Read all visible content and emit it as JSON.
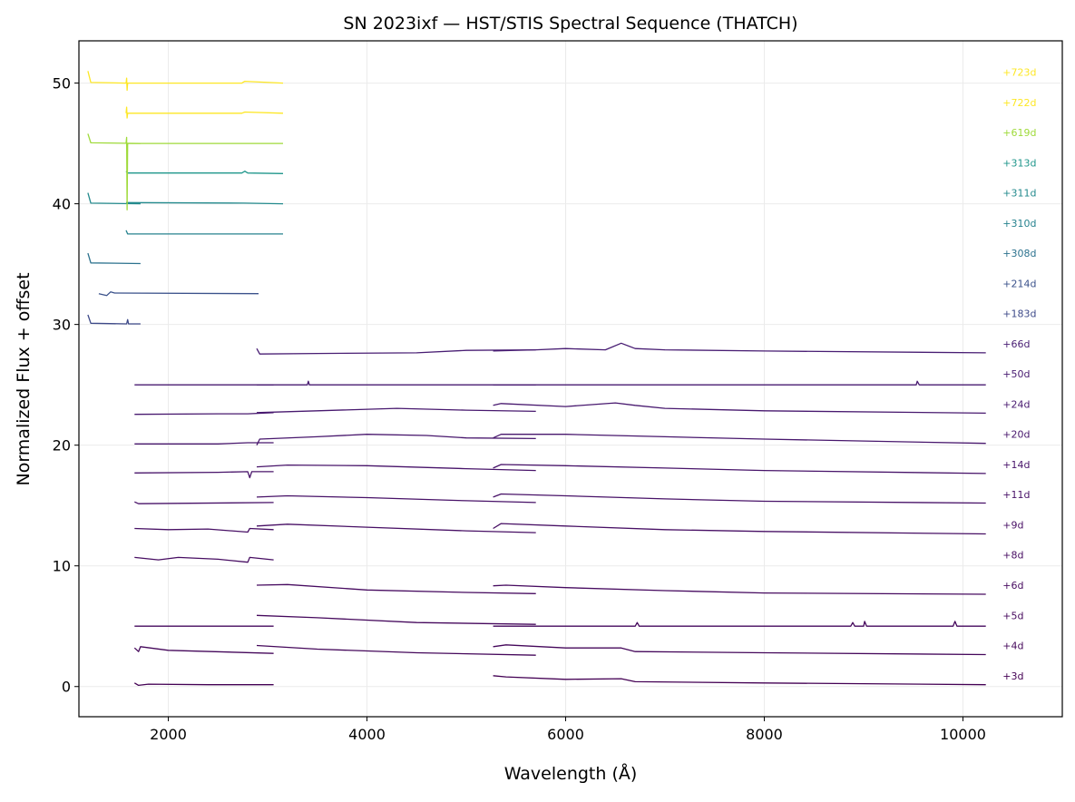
{
  "chart_data": {
    "type": "line",
    "title": "SN 2023ixf — HST/STIS Spectral Sequence (THATCH)",
    "xlabel": "Wavelength (Å)",
    "ylabel": "Normalized Flux + offset",
    "xlim": [
      1100,
      11000
    ],
    "ylim": [
      -2.5,
      53.5
    ],
    "xticks": [
      2000,
      4000,
      6000,
      8000,
      10000
    ],
    "yticks": [
      0,
      10,
      20,
      30,
      40,
      50
    ],
    "grid": true,
    "label_wavelength": 10400,
    "series": [
      {
        "name": "+3d",
        "offset": 0,
        "color": "#440154",
        "segments": [
          [
            [
              1660,
              0.3
            ],
            [
              1700,
              0.1
            ],
            [
              1800,
              0.2
            ],
            [
              2400,
              0.15
            ],
            [
              3060,
              0.15
            ]
          ],
          [
            [
              5270,
              0.9
            ],
            [
              5400,
              0.8
            ],
            [
              6000,
              0.6
            ],
            [
              6560,
              0.65
            ],
            [
              6700,
              0.4
            ],
            [
              8000,
              0.3
            ],
            [
              10230,
              0.15
            ]
          ]
        ]
      },
      {
        "name": "+4d",
        "offset": 2.5,
        "color": "#45085b",
        "segments": [
          [
            [
              1660,
              3.2
            ],
            [
              1700,
              2.9
            ],
            [
              1720,
              3.3
            ],
            [
              2000,
              3.0
            ],
            [
              3060,
              2.75
            ]
          ],
          [
            [
              2890,
              3.4
            ],
            [
              3500,
              3.1
            ],
            [
              4500,
              2.8
            ],
            [
              5700,
              2.6
            ]
          ],
          [
            [
              5270,
              3.3
            ],
            [
              5400,
              3.45
            ],
            [
              6000,
              3.2
            ],
            [
              6560,
              3.2
            ],
            [
              6700,
              2.9
            ],
            [
              8000,
              2.8
            ],
            [
              10230,
              2.65
            ]
          ]
        ]
      },
      {
        "name": "+5d",
        "offset": 5,
        "color": "#46095d",
        "segments": [
          [
            [
              1660,
              5.0
            ],
            [
              3060,
              5.0
            ]
          ],
          [
            [
              2890,
              5.9
            ],
            [
              3500,
              5.7
            ],
            [
              4500,
              5.3
            ],
            [
              5700,
              5.15
            ]
          ],
          [
            [
              5270,
              5.0
            ],
            [
              6700,
              5.0
            ],
            [
              6720,
              5.3
            ],
            [
              6740,
              5.0
            ],
            [
              8870,
              5.0
            ],
            [
              8890,
              5.3
            ],
            [
              8910,
              5.0
            ],
            [
              9000,
              5.0
            ],
            [
              9010,
              5.4
            ],
            [
              9030,
              5.0
            ],
            [
              9900,
              5.0
            ],
            [
              9920,
              5.4
            ],
            [
              9940,
              5.0
            ],
            [
              10230,
              5.0
            ]
          ]
        ]
      },
      {
        "name": "+6d",
        "offset": 7.5,
        "color": "#470b60",
        "segments": [
          [
            [
              2890,
              8.4
            ],
            [
              3200,
              8.45
            ],
            [
              4000,
              8.0
            ],
            [
              5000,
              7.8
            ],
            [
              5700,
              7.7
            ]
          ],
          [
            [
              5270,
              8.35
            ],
            [
              5400,
              8.4
            ],
            [
              6000,
              8.2
            ],
            [
              7000,
              7.95
            ],
            [
              8000,
              7.75
            ],
            [
              10230,
              7.65
            ]
          ]
        ]
      },
      {
        "name": "+8d",
        "offset": 10,
        "color": "#470d62",
        "segments": [
          [
            [
              1660,
              10.7
            ],
            [
              1900,
              10.5
            ],
            [
              2100,
              10.7
            ],
            [
              2500,
              10.55
            ],
            [
              2800,
              10.3
            ],
            [
              2820,
              10.7
            ],
            [
              3060,
              10.5
            ]
          ]
        ]
      },
      {
        "name": "+9d",
        "offset": 12.5,
        "color": "#481065",
        "segments": [
          [
            [
              1660,
              13.1
            ],
            [
              2000,
              13.0
            ],
            [
              2400,
              13.05
            ],
            [
              2800,
              12.8
            ],
            [
              2820,
              13.1
            ],
            [
              3060,
              13.0
            ]
          ],
          [
            [
              2890,
              13.3
            ],
            [
              3200,
              13.45
            ],
            [
              4000,
              13.2
            ],
            [
              5000,
              12.9
            ],
            [
              5700,
              12.75
            ]
          ],
          [
            [
              5270,
              13.1
            ],
            [
              5350,
              13.5
            ],
            [
              6000,
              13.3
            ],
            [
              7000,
              13.0
            ],
            [
              8000,
              12.85
            ],
            [
              10230,
              12.65
            ]
          ]
        ]
      },
      {
        "name": "+11d",
        "offset": 15,
        "color": "#481268",
        "segments": [
          [
            [
              1660,
              15.3
            ],
            [
              1700,
              15.15
            ],
            [
              3060,
              15.25
            ]
          ],
          [
            [
              2890,
              15.7
            ],
            [
              3200,
              15.8
            ],
            [
              4000,
              15.65
            ],
            [
              5000,
              15.4
            ],
            [
              5700,
              15.25
            ]
          ],
          [
            [
              5270,
              15.7
            ],
            [
              5350,
              15.95
            ],
            [
              6000,
              15.8
            ],
            [
              7000,
              15.55
            ],
            [
              8000,
              15.35
            ],
            [
              10230,
              15.2
            ]
          ]
        ]
      },
      {
        "name": "+14d",
        "offset": 17.5,
        "color": "#48146a",
        "segments": [
          [
            [
              1660,
              17.7
            ],
            [
              2500,
              17.75
            ],
            [
              2800,
              17.8
            ],
            [
              2820,
              17.3
            ],
            [
              2840,
              17.8
            ],
            [
              3060,
              17.8
            ]
          ],
          [
            [
              2890,
              18.2
            ],
            [
              3200,
              18.35
            ],
            [
              4000,
              18.3
            ],
            [
              5000,
              18.05
            ],
            [
              5700,
              17.9
            ]
          ],
          [
            [
              5270,
              18.1
            ],
            [
              5350,
              18.4
            ],
            [
              6000,
              18.3
            ],
            [
              7000,
              18.1
            ],
            [
              8000,
              17.9
            ],
            [
              10230,
              17.65
            ]
          ]
        ]
      },
      {
        "name": "+20d",
        "offset": 20,
        "color": "#48176d",
        "segments": [
          [
            [
              1660,
              20.1
            ],
            [
              2500,
              20.1
            ],
            [
              2800,
              20.2
            ],
            [
              3060,
              20.2
            ]
          ],
          [
            [
              2890,
              20.0
            ],
            [
              2920,
              20.5
            ],
            [
              3500,
              20.7
            ],
            [
              4000,
              20.9
            ],
            [
              4600,
              20.8
            ],
            [
              5000,
              20.6
            ],
            [
              5700,
              20.55
            ]
          ],
          [
            [
              5270,
              20.6
            ],
            [
              5350,
              20.9
            ],
            [
              6000,
              20.9
            ],
            [
              7000,
              20.7
            ],
            [
              8000,
              20.5
            ],
            [
              10230,
              20.15
            ]
          ]
        ]
      },
      {
        "name": "+24d",
        "offset": 22.5,
        "color": "#48196f",
        "segments": [
          [
            [
              1660,
              22.55
            ],
            [
              2500,
              22.6
            ],
            [
              2800,
              22.6
            ],
            [
              3060,
              22.7
            ]
          ],
          [
            [
              2890,
              22.7
            ],
            [
              3500,
              22.85
            ],
            [
              4300,
              23.05
            ],
            [
              5000,
              22.9
            ],
            [
              5700,
              22.8
            ]
          ],
          [
            [
              5270,
              23.3
            ],
            [
              5350,
              23.45
            ],
            [
              6000,
              23.2
            ],
            [
              6500,
              23.5
            ],
            [
              6700,
              23.3
            ],
            [
              7000,
              23.05
            ],
            [
              8000,
              22.85
            ],
            [
              10230,
              22.65
            ]
          ]
        ]
      },
      {
        "name": "+50d",
        "offset": 25,
        "color": "#481b71",
        "segments": [
          [
            [
              1660,
              25.0
            ],
            [
              3060,
              25.0
            ]
          ],
          [
            [
              2890,
              25.0
            ],
            [
              3400,
              25.0
            ],
            [
              3410,
              25.3
            ],
            [
              3420,
              25.0
            ],
            [
              5700,
              25.0
            ]
          ],
          [
            [
              5270,
              25.0
            ],
            [
              9530,
              25.0
            ],
            [
              9540,
              25.3
            ],
            [
              9560,
              25.0
            ],
            [
              10230,
              25.0
            ]
          ]
        ]
      },
      {
        "name": "+66d",
        "offset": 27.5,
        "color": "#481d73",
        "segments": [
          [
            [
              2890,
              28.0
            ],
            [
              2920,
              27.55
            ],
            [
              3500,
              27.6
            ],
            [
              4500,
              27.65
            ],
            [
              5000,
              27.85
            ],
            [
              5700,
              27.9
            ]
          ],
          [
            [
              5270,
              27.8
            ],
            [
              5700,
              27.9
            ],
            [
              6000,
              28.0
            ],
            [
              6400,
              27.9
            ],
            [
              6560,
              28.45
            ],
            [
              6700,
              28.0
            ],
            [
              7000,
              27.9
            ],
            [
              8000,
              27.8
            ],
            [
              10230,
              27.65
            ]
          ]
        ]
      },
      {
        "name": "+183d",
        "offset": 30,
        "color": "#3e4a89",
        "segments": [
          [
            [
              1190,
              30.8
            ],
            [
              1220,
              30.1
            ],
            [
              1580,
              30.05
            ],
            [
              1590,
              30.4
            ],
            [
              1600,
              30.05
            ],
            [
              1720,
              30.05
            ]
          ]
        ]
      },
      {
        "name": "+214d",
        "offset": 32.5,
        "color": "#3b528b",
        "segments": [
          [
            [
              1300,
              32.55
            ],
            [
              1380,
              32.4
            ],
            [
              1420,
              32.7
            ],
            [
              1460,
              32.6
            ],
            [
              2908,
              32.55
            ]
          ]
        ]
      },
      {
        "name": "+308d",
        "offset": 35,
        "color": "#2c728e",
        "segments": [
          [
            [
              1190,
              35.9
            ],
            [
              1220,
              35.1
            ],
            [
              1720,
              35.05
            ]
          ]
        ]
      },
      {
        "name": "+310d",
        "offset": 37.5,
        "color": "#26828e",
        "segments": [
          [
            [
              1575,
              37.8
            ],
            [
              1590,
              37.5
            ],
            [
              3155,
              37.5
            ]
          ]
        ]
      },
      {
        "name": "+311d",
        "offset": 40,
        "color": "#238a8d",
        "segments": [
          [
            [
              1190,
              40.9
            ],
            [
              1220,
              40.05
            ],
            [
              1720,
              40.0
            ]
          ],
          [
            [
              1575,
              40.1
            ],
            [
              2760,
              40.05
            ],
            [
              3155,
              40.0
            ]
          ]
        ]
      },
      {
        "name": "+313d",
        "offset": 42.5,
        "color": "#1f968b",
        "segments": [
          [
            [
              1575,
              42.7
            ],
            [
              1590,
              42.55
            ],
            [
              2740,
              42.55
            ],
            [
              2770,
              42.7
            ],
            [
              2800,
              42.55
            ],
            [
              3155,
              42.5
            ]
          ]
        ]
      },
      {
        "name": "+619d",
        "offset": 45,
        "color": "#9fda3a",
        "segments": [
          [
            [
              1190,
              45.8
            ],
            [
              1220,
              45.05
            ],
            [
              1720,
              45.0
            ]
          ],
          [
            [
              1575,
              45.05
            ],
            [
              1580,
              45.5
            ],
            [
              1585,
              39.5
            ],
            [
              1590,
              45.0
            ],
            [
              3155,
              45.0
            ]
          ]
        ]
      },
      {
        "name": "+722d",
        "offset": 47.5,
        "color": "#fde725",
        "segments": [
          [
            [
              1575,
              47.5
            ],
            [
              1580,
              48.0
            ],
            [
              1585,
              47.1
            ],
            [
              1590,
              47.5
            ],
            [
              2740,
              47.5
            ],
            [
              2770,
              47.6
            ],
            [
              3155,
              47.5
            ]
          ]
        ]
      },
      {
        "name": "+723d",
        "offset": 50,
        "color": "#fde725",
        "segments": [
          [
            [
              1190,
              51.0
            ],
            [
              1220,
              50.05
            ],
            [
              1575,
              50.0
            ],
            [
              1580,
              50.4
            ],
            [
              1585,
              49.4
            ],
            [
              1590,
              50.0
            ],
            [
              2740,
              50.0
            ],
            [
              2770,
              50.15
            ],
            [
              3155,
              50.0
            ]
          ]
        ]
      }
    ]
  }
}
